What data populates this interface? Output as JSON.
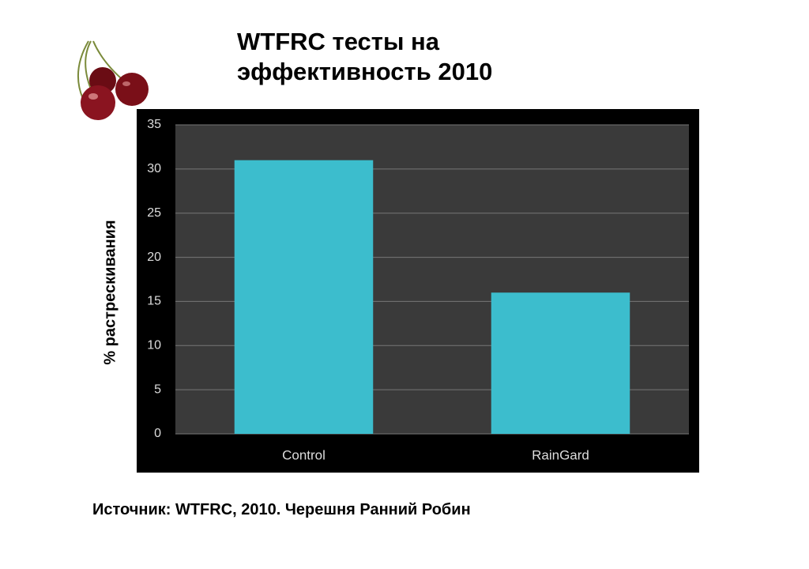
{
  "chart_data": {
    "type": "bar",
    "title": "WTFRC тесты на эффективность 2010",
    "y_label": "% растрескивания",
    "categories": [
      "Control",
      "RainGard"
    ],
    "values": [
      31,
      16
    ],
    "color": "#3cbdcd",
    "ylim": [
      0,
      35
    ],
    "yticks": [
      0,
      5,
      10,
      15,
      20,
      25,
      30,
      35
    ],
    "grid": true,
    "source": "Источник: WTFRC, 2010. Черешня Ранний Робин"
  }
}
